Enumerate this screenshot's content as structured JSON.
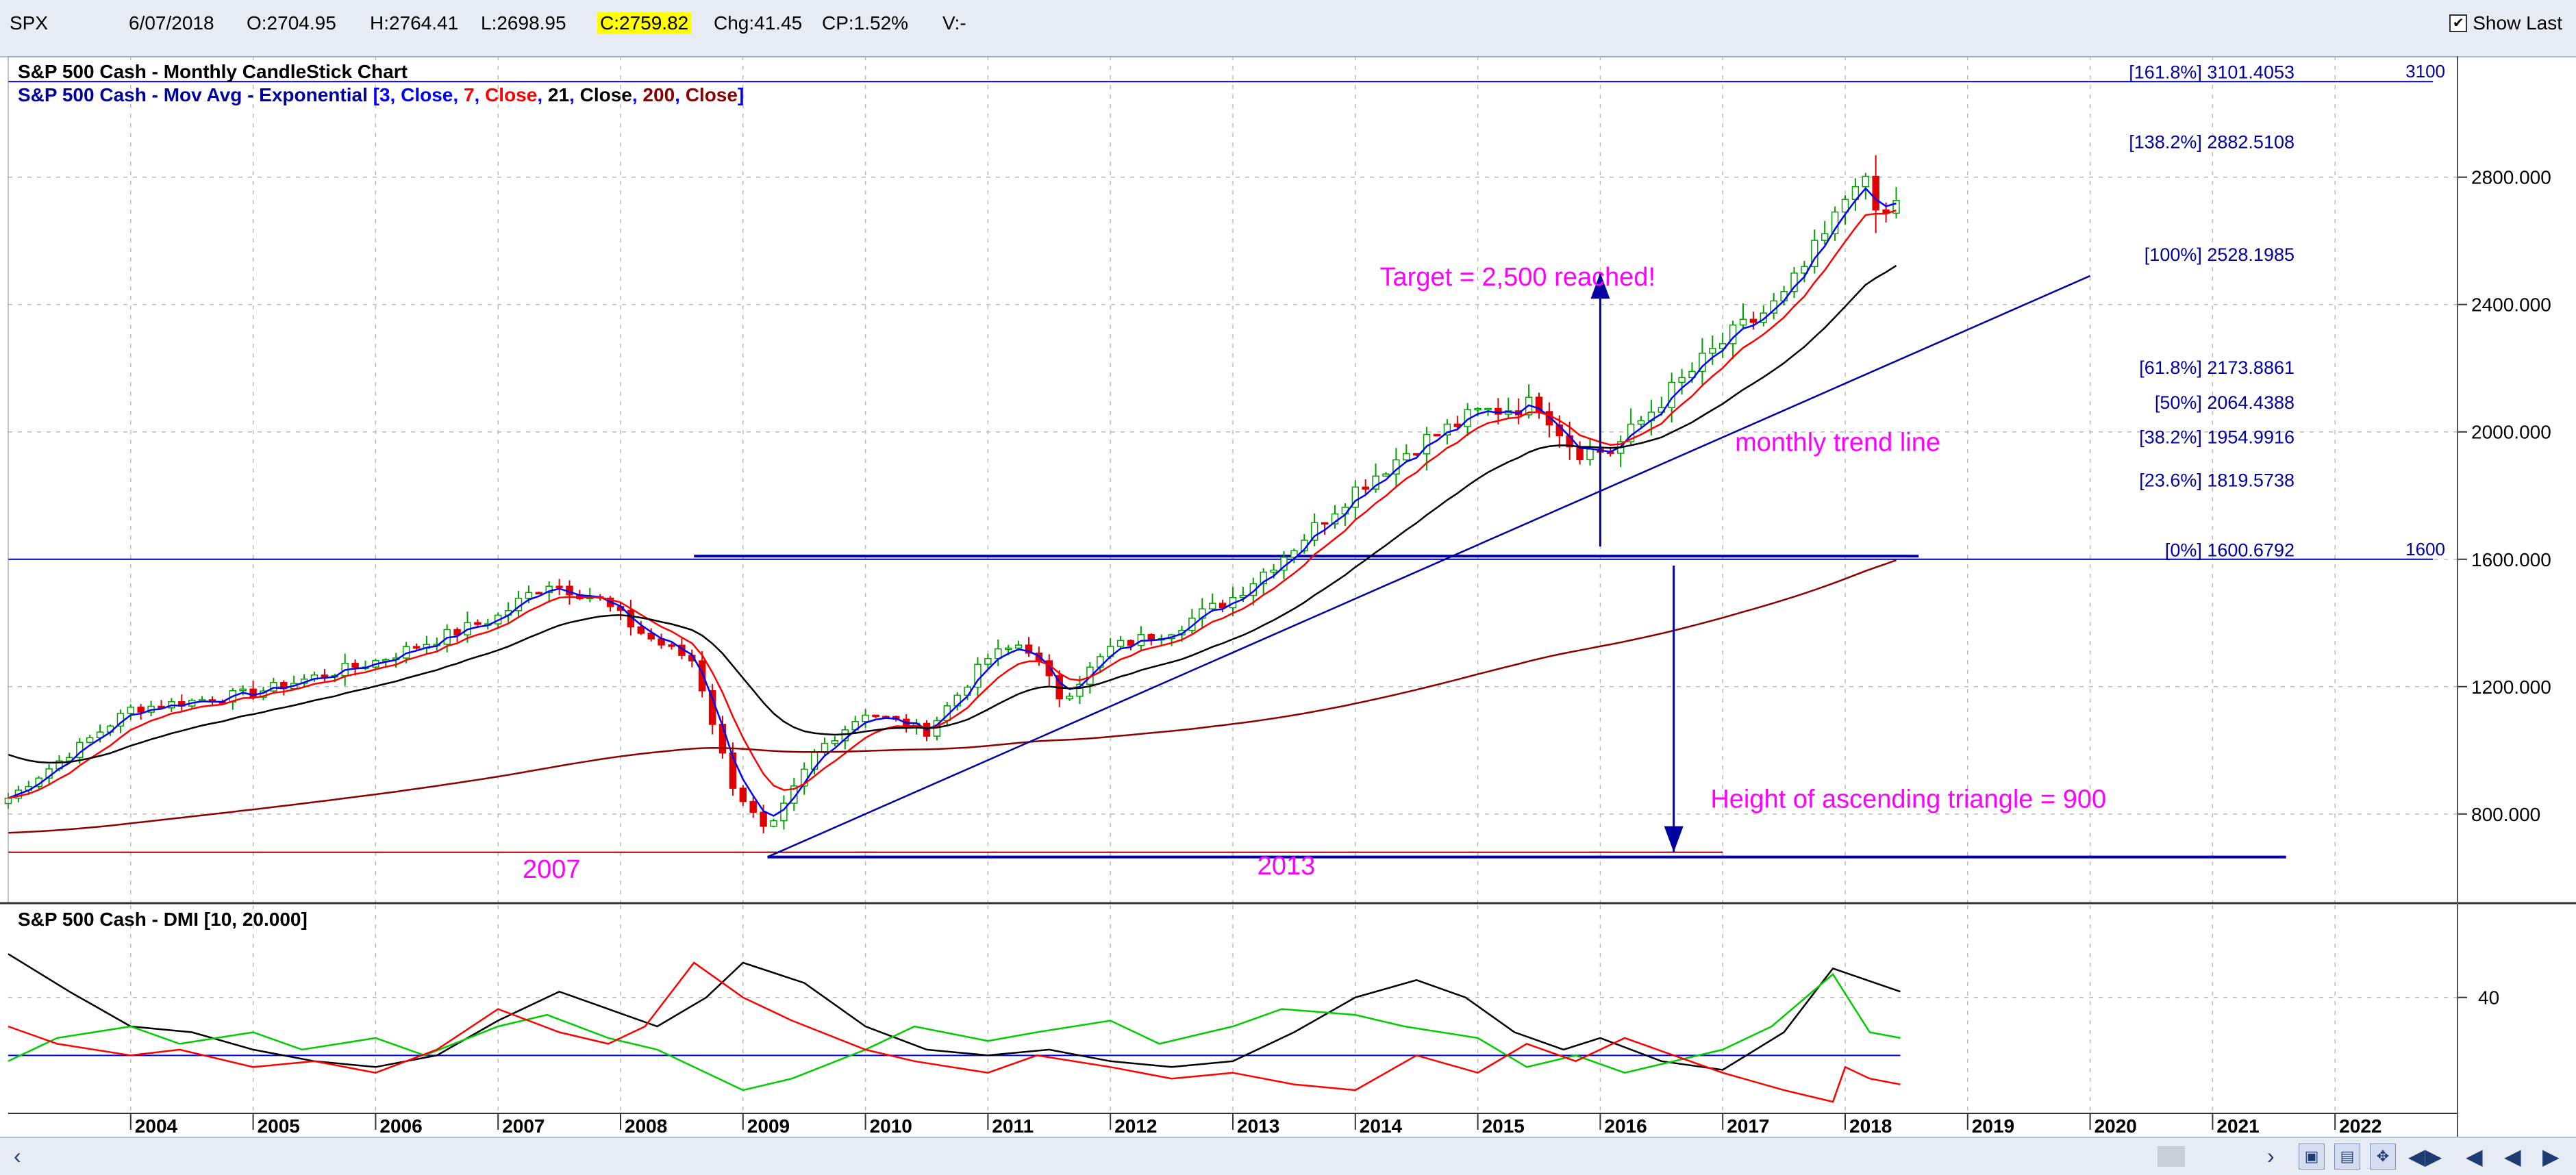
{
  "quote": {
    "symbol": "SPX",
    "date": "6/07/2018",
    "open": "O:2704.95",
    "high": "H:2764.41",
    "low": "L:2698.95",
    "close": "C:2759.82",
    "change": "Chg:41.45",
    "change_pct": "CP:1.52%",
    "volume": "V:-",
    "show_last_label": "Show Last",
    "show_last_checked": "✔"
  },
  "colors": {
    "up_candle": "#00a000",
    "down_candle": "#e00000",
    "ema3": "#0000ff",
    "ema7": "#ff0000",
    "ema21": "#000000",
    "ema200": "#8b0000",
    "annotation": "#ff00ff",
    "trendline": "#0000a0",
    "dmi_adx": "#000000",
    "dmi_plus": "#00cc00",
    "dmi_minus": "#ff0000"
  },
  "chart_data": [
    {
      "type": "candlestick",
      "title": "S&P 500 Cash - Monthly CandleStick Chart",
      "subtitle": {
        "prefix": "S&P 500 Cash - Mov Avg - Exponential",
        "parts": [
          {
            "text": "[3, ",
            "color": "#0000ff"
          },
          {
            "text": "Close",
            "color": "#0000ff"
          },
          {
            "text": ", ",
            "color": "#0000ff"
          },
          {
            "text": "7",
            "color": "#ff0000"
          },
          {
            "text": ", ",
            "color": "#0000ff"
          },
          {
            "text": "Close",
            "color": "#ff0000"
          },
          {
            "text": ", ",
            "color": "#0000ff"
          },
          {
            "text": "21",
            "color": "#000000"
          },
          {
            "text": ", ",
            "color": "#0000ff"
          },
          {
            "text": "Close",
            "color": "#000000"
          },
          {
            "text": ", ",
            "color": "#0000ff"
          },
          {
            "text": "200",
            "color": "#8b0000"
          },
          {
            "text": ", ",
            "color": "#0000ff"
          },
          {
            "text": "Close",
            "color": "#8b0000"
          },
          {
            "text": "]",
            "color": "#0000ff"
          }
        ]
      },
      "x_range": [
        2003.0,
        2023.0
      ],
      "ylim": [
        520,
        3180
      ],
      "y_ticks": [
        800,
        1200,
        1600,
        2000,
        2400,
        2800
      ],
      "y_tick_labels": [
        "800.000",
        "1200.000",
        "1600.000",
        "2000.000",
        "2400.000",
        "2800.000"
      ],
      "x_tick_labels": [
        "2004",
        "2005",
        "2006",
        "2007",
        "2008",
        "2009",
        "2010",
        "2011",
        "2012",
        "2013",
        "2014",
        "2015",
        "2016",
        "2017",
        "2018",
        "2019",
        "2020",
        "2021",
        "2022"
      ],
      "grid": true,
      "close_anchors": [
        [
          2003.0,
          850
        ],
        [
          2004.0,
          1130
        ],
        [
          2005.0,
          1180
        ],
        [
          2006.0,
          1280
        ],
        [
          2007.0,
          1420
        ],
        [
          2007.4,
          1530
        ],
        [
          2007.8,
          1480
        ],
        [
          2008.2,
          1360
        ],
        [
          2008.6,
          1280
        ],
        [
          2008.9,
          900
        ],
        [
          2009.2,
          735
        ],
        [
          2009.6,
          1000
        ],
        [
          2010.0,
          1120
        ],
        [
          2010.5,
          1060
        ],
        [
          2011.0,
          1290
        ],
        [
          2011.3,
          1340
        ],
        [
          2011.6,
          1160
        ],
        [
          2012.0,
          1320
        ],
        [
          2012.5,
          1380
        ],
        [
          2013.0,
          1480
        ],
        [
          2013.5,
          1640
        ],
        [
          2014.0,
          1820
        ],
        [
          2014.5,
          1960
        ],
        [
          2015.0,
          2060
        ],
        [
          2015.5,
          2090
        ],
        [
          2015.8,
          1940
        ],
        [
          2016.1,
          1940
        ],
        [
          2016.5,
          2100
        ],
        [
          2017.0,
          2280
        ],
        [
          2017.5,
          2420
        ],
        [
          2017.9,
          2650
        ],
        [
          2018.1,
          2820
        ],
        [
          2018.3,
          2650
        ],
        [
          2018.45,
          2760
        ]
      ],
      "horizontal_lines": [
        {
          "y": 3100,
          "x0": 2003.0,
          "x1": 2022.8,
          "color": "#0000a0",
          "width": 2,
          "label": "3100"
        },
        {
          "y": 1600,
          "x0": 2003.0,
          "x1": 2022.8,
          "color": "#0000a0",
          "width": 2,
          "label": "1600"
        },
        {
          "y": 1610,
          "x0": 2008.6,
          "x1": 2018.6,
          "color": "#0000a0",
          "width": 4
        },
        {
          "y": 680,
          "x0": 2003.0,
          "x1": 2017.0,
          "color": "#8b0000",
          "width": 2
        },
        {
          "y": 665,
          "x0": 2009.2,
          "x1": 2021.6,
          "color": "#0000a0",
          "width": 4
        }
      ],
      "trend_line": {
        "x0": 2009.2,
        "y0": 665,
        "x1": 2020.0,
        "y1": 2490
      },
      "arrows": [
        {
          "x": 2016.0,
          "y_from": 1640,
          "y_to": 2500
        },
        {
          "x": 2016.6,
          "y_from": 1580,
          "y_to": 680
        }
      ],
      "fibonacci": [
        {
          "label": "[161.8%] 3101.4053",
          "value": 3101.4053
        },
        {
          "label": "[138.2%] 2882.5108",
          "value": 2882.5108
        },
        {
          "label": "[100%] 2528.1985",
          "value": 2528.1985
        },
        {
          "label": "[61.8%] 2173.8861",
          "value": 2173.8861
        },
        {
          "label": "[50%] 2064.4388",
          "value": 2064.4388
        },
        {
          "label": "[38.2%] 1954.9916",
          "value": 1954.9916
        },
        {
          "label": "[23.6%] 1819.5738",
          "value": 1819.5738
        },
        {
          "label": "[0%] 1600.6792",
          "value": 1600.6792
        }
      ],
      "annotations": [
        {
          "text": "Target = 2,500 reached!",
          "x": 2014.2,
          "y": 2460
        },
        {
          "text": "monthly trend line",
          "x": 2017.1,
          "y": 1940
        },
        {
          "text": "Height of ascending triangle = 900",
          "x": 2016.9,
          "y": 820
        },
        {
          "text": "2007",
          "x": 2007.2,
          "y": 600
        },
        {
          "text": "2013",
          "x": 2013.2,
          "y": 610
        }
      ]
    },
    {
      "type": "line",
      "title": "S&P 500 Cash - DMI [10, 20.000]",
      "x_range": [
        2003.0,
        2023.0
      ],
      "ylim": [
        0,
        60
      ],
      "y_ticks": [
        40
      ],
      "y_tick_labels": [
        "40"
      ],
      "reference_line": 20,
      "series": [
        {
          "color": "#000000",
          "x": [
            2003.0,
            2003.5,
            2004.0,
            2004.5,
            2005.0,
            2005.5,
            2006.0,
            2006.5,
            2007.0,
            2007.5,
            2007.9,
            2008.3,
            2008.7,
            2009.0,
            2009.5,
            2010.0,
            2010.5,
            2011.0,
            2011.5,
            2012.0,
            2012.5,
            2013.0,
            2013.5,
            2014.0,
            2014.5,
            2014.9,
            2015.3,
            2015.7,
            2016.0,
            2016.5,
            2017.0,
            2017.5,
            2017.9,
            2018.45
          ],
          "values": [
            55,
            42,
            30,
            28,
            22,
            18,
            16,
            20,
            32,
            42,
            36,
            30,
            40,
            52,
            45,
            30,
            22,
            20,
            22,
            18,
            16,
            18,
            28,
            40,
            46,
            40,
            28,
            22,
            26,
            18,
            15,
            28,
            50,
            42
          ]
        },
        {
          "color": "#00cc00",
          "x": [
            2003.0,
            2003.4,
            2004.0,
            2004.4,
            2005.0,
            2005.4,
            2006.0,
            2006.4,
            2007.0,
            2007.4,
            2007.9,
            2008.3,
            2008.7,
            2009.0,
            2009.4,
            2010.0,
            2010.4,
            2011.0,
            2011.4,
            2012.0,
            2012.4,
            2013.0,
            2013.4,
            2014.0,
            2014.4,
            2015.0,
            2015.4,
            2015.8,
            2016.2,
            2016.6,
            2017.0,
            2017.4,
            2017.9,
            2018.2,
            2018.45
          ],
          "values": [
            18,
            26,
            30,
            24,
            28,
            22,
            26,
            20,
            30,
            34,
            26,
            22,
            14,
            8,
            12,
            22,
            30,
            25,
            28,
            32,
            24,
            30,
            36,
            34,
            30,
            26,
            16,
            20,
            14,
            18,
            22,
            30,
            48,
            28,
            26
          ]
        },
        {
          "color": "#ff0000",
          "x": [
            2003.0,
            2003.4,
            2004.0,
            2004.4,
            2005.0,
            2005.5,
            2006.0,
            2006.5,
            2007.0,
            2007.5,
            2007.9,
            2008.2,
            2008.6,
            2009.0,
            2009.4,
            2010.0,
            2010.4,
            2011.0,
            2011.4,
            2012.0,
            2012.5,
            2013.0,
            2013.5,
            2014.0,
            2014.5,
            2015.0,
            2015.4,
            2015.8,
            2016.2,
            2016.6,
            2017.0,
            2017.5,
            2017.9,
            2018.0,
            2018.2,
            2018.45
          ],
          "values": [
            30,
            24,
            20,
            22,
            16,
            18,
            14,
            22,
            36,
            28,
            24,
            30,
            52,
            40,
            32,
            22,
            18,
            14,
            20,
            16,
            12,
            14,
            10,
            8,
            20,
            14,
            24,
            18,
            26,
            20,
            14,
            8,
            4,
            16,
            12,
            10
          ]
        }
      ]
    }
  ]
}
